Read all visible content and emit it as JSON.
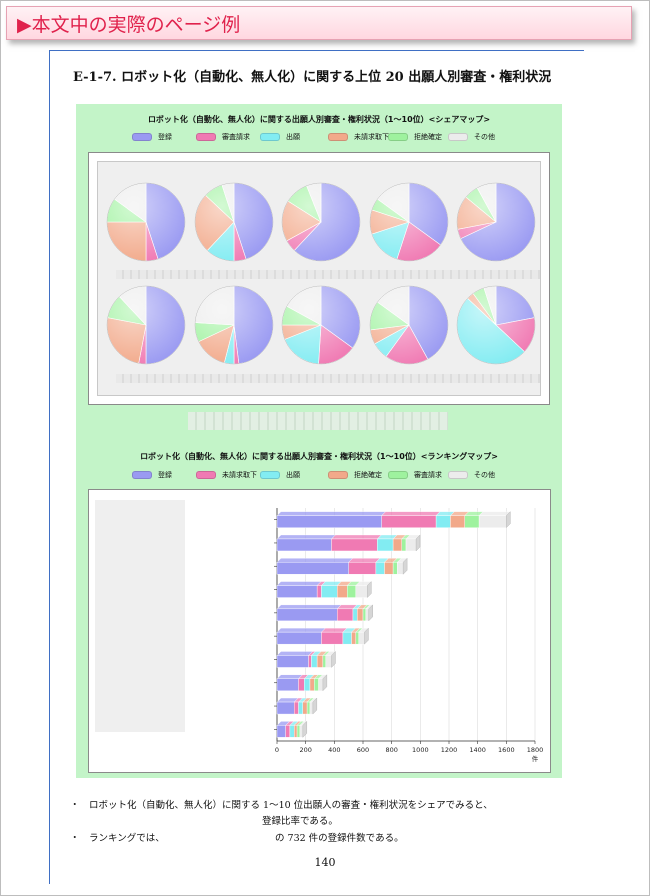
{
  "header": {
    "banner_text": "▶本文中の実際のページ例"
  },
  "section": {
    "title": "E-1-7.  ロボット化（自動化、無人化）に関する上位 20 出願人別審査・権利状況"
  },
  "chart_data": [
    {
      "type": "pie",
      "title": "ロボット化（自動化、無人化）に関する出願人別審査・権利状況（1～10位）<シェアマップ>",
      "legend": [
        "登録",
        "審査請求",
        "出願",
        "未請求取下",
        "拒絶確定",
        "その他"
      ],
      "colors": [
        "#9a9af2",
        "#f07ab3",
        "#82ecf2",
        "#f2a98a",
        "#9ef29e",
        "#ececec"
      ],
      "pies": [
        [
          45,
          5,
          0,
          25,
          10,
          15
        ],
        [
          45,
          5,
          12,
          25,
          8,
          5
        ],
        [
          62,
          5,
          0,
          17,
          10,
          6
        ],
        [
          35,
          20,
          15,
          10,
          5,
          15
        ],
        [
          68,
          4,
          0,
          14,
          6,
          8
        ],
        [
          50,
          3,
          0,
          25,
          10,
          12
        ],
        [
          48,
          2,
          4,
          14,
          8,
          24
        ],
        [
          35,
          16,
          18,
          6,
          8,
          17
        ],
        [
          42,
          18,
          7,
          6,
          12,
          15
        ],
        [
          22,
          15,
          50,
          3,
          5,
          5
        ]
      ]
    },
    {
      "type": "bar",
      "title": "ロボット化（自動化、無人化）に関する出願人別審査・権利状況（1～10位）<ランキングマップ>",
      "legend": [
        "登録",
        "未請求取下",
        "出願",
        "拒絶確定",
        "審査請求",
        "その他"
      ],
      "colors": [
        "#9a9af2",
        "#f07ab3",
        "#82ecf2",
        "#f2a98a",
        "#9ef29e",
        "#ececec"
      ],
      "xlabel": "件",
      "xlim": [
        0,
        1800
      ],
      "ticks": [
        0,
        200,
        400,
        600,
        800,
        1000,
        1200,
        1400,
        1600,
        1800
      ],
      "series": [
        [
          730,
          380,
          100,
          100,
          100,
          190
        ],
        [
          380,
          320,
          110,
          60,
          30,
          70
        ],
        [
          500,
          190,
          60,
          60,
          30,
          40
        ],
        [
          280,
          30,
          110,
          70,
          60,
          80
        ],
        [
          420,
          110,
          30,
          40,
          20,
          20
        ],
        [
          310,
          150,
          60,
          30,
          20,
          40
        ],
        [
          220,
          20,
          40,
          40,
          20,
          40
        ],
        [
          150,
          40,
          40,
          30,
          30,
          30
        ],
        [
          120,
          30,
          30,
          30,
          20,
          20
        ],
        [
          60,
          30,
          30,
          20,
          20,
          20
        ]
      ]
    }
  ],
  "bullets": [
    "・　ロボット化（自動化、無人化）に関する 1～10 位出願人の審査・権利状況をシェアでみると、",
    "登録比率である。",
    "・　ランキングでは、",
    "の 732 件の登録件数である。"
  ],
  "page_number": "140"
}
